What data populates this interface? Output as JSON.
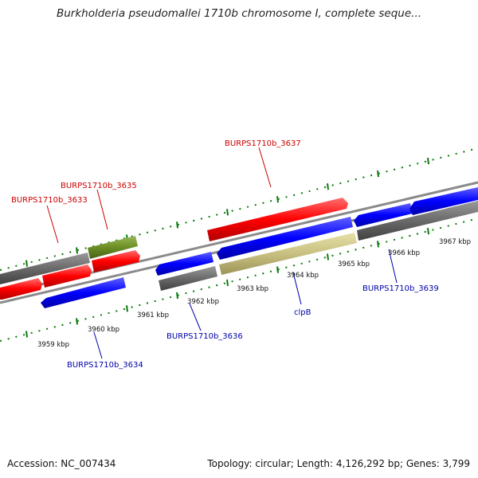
{
  "title": "Burkholderia pseudomallei 1710b chromosome I, complete seque...",
  "accession": "Accession: NC_007434",
  "summary": "Topology: circular; Length: 4,126,292 bp; Genes: 3,799",
  "ruler_labels": [
    "3959 kbp",
    "3960 kbp",
    "3961 kbp",
    "3962 kbp",
    "3963 kbp",
    "3964 kbp",
    "3965 kbp",
    "3966 kbp",
    "3967 kbp"
  ],
  "gene_labels": [
    {
      "text": "BURPS1710b_3633",
      "strand": "forward"
    },
    {
      "text": "BURPS1710b_3635",
      "strand": "forward"
    },
    {
      "text": "BURPS1710b_3637",
      "strand": "forward"
    },
    {
      "text": "BURPS1710b_3636",
      "strand": "reverse"
    },
    {
      "text": "BURPS1710b_3634",
      "strand": "reverse"
    },
    {
      "text": "clpB",
      "strand": "reverse"
    },
    {
      "text": "BURPS1710b_3639",
      "strand": "reverse"
    }
  ],
  "colors": {
    "forward_cds": "#ff0000",
    "reverse_cds": "#0000ff",
    "other_gene": "#666666",
    "rrna_gene": "#6b8e23",
    "highlight_gene": "#bdb76b",
    "ticks": "#0a7a0a",
    "forward_label": "#cc0000",
    "reverse_label": "#0000aa",
    "backbone": "#888888"
  }
}
